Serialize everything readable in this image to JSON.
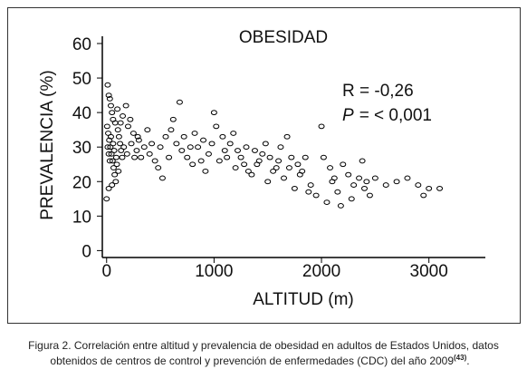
{
  "chart_data": {
    "type": "scatter",
    "title": "OBESIDAD",
    "x_label": "ALTITUD (m)",
    "y_label": "PREVALENCIA (%)",
    "annotations": [
      "R = -0,26",
      "P",
      "= < 0,001"
    ],
    "xlim": [
      -40,
      3500
    ],
    "ylim": [
      -2,
      60
    ],
    "xticks": [
      0,
      1000,
      2000,
      3000
    ],
    "yticks": [
      0,
      10,
      20,
      30,
      40,
      50,
      60
    ],
    "color": "#000000",
    "x": [
      0,
      10,
      20,
      30,
      40,
      50,
      60,
      5,
      15,
      25,
      35,
      45,
      55,
      65,
      75,
      85,
      95,
      105,
      115,
      125,
      135,
      145,
      20,
      50,
      80,
      100,
      150,
      200,
      250,
      300,
      350,
      400,
      450,
      500,
      550,
      600,
      650,
      700,
      750,
      800,
      850,
      900,
      950,
      1000,
      1050,
      1100,
      1150,
      1200,
      1250,
      1300,
      1350,
      1400,
      1450,
      1500,
      1550,
      1600,
      1650,
      1700,
      1750,
      1800,
      1850,
      1900,
      1950,
      2000,
      2050,
      2100,
      2150,
      2200,
      2250,
      2300,
      2350,
      2400,
      2450,
      2500,
      2600,
      2700,
      2800,
      2900,
      2950,
      3000,
      3100,
      180,
      220,
      280,
      320,
      380,
      420,
      480,
      520,
      580,
      620,
      680,
      720,
      780,
      820,
      880,
      920,
      980,
      1020,
      1080,
      1120,
      1180,
      1220,
      1280,
      1320,
      1380,
      1420,
      1480,
      1520,
      1580,
      1620,
      1680,
      1720,
      1780,
      1820,
      1880,
      2020,
      2080,
      2120,
      2180,
      2280,
      2380,
      2420,
      10,
      20,
      30,
      40,
      60,
      70,
      90,
      110,
      130,
      160,
      190,
      230,
      260,
      290
    ],
    "values": [
      15,
      48,
      45,
      44,
      42,
      40,
      38,
      36,
      34,
      32,
      30,
      28,
      26,
      24,
      22,
      20,
      25,
      35,
      33,
      31,
      29,
      27,
      18,
      19,
      37,
      41,
      39,
      36,
      34,
      32,
      30,
      28,
      26,
      30,
      33,
      35,
      31,
      29,
      27,
      25,
      30,
      32,
      28,
      40,
      26,
      29,
      31,
      24,
      27,
      30,
      22,
      25,
      28,
      20,
      23,
      26,
      21,
      24,
      18,
      22,
      27,
      19,
      16,
      36,
      14,
      20,
      17,
      25,
      22,
      19,
      21,
      18,
      16,
      21,
      19,
      20,
      21,
      19,
      16,
      18,
      18,
      42,
      38,
      29,
      27,
      35,
      31,
      24,
      21,
      27,
      38,
      43,
      33,
      30,
      34,
      26,
      23,
      31,
      36,
      33,
      27,
      34,
      29,
      25,
      23,
      29,
      26,
      31,
      27,
      24,
      30,
      33,
      27,
      25,
      23,
      17,
      27,
      24,
      21,
      13,
      15,
      26,
      20,
      30,
      28,
      26,
      33,
      31,
      29,
      27,
      23,
      37,
      30,
      28,
      31,
      27,
      33
    ]
  },
  "caption": {
    "lines": [
      "Figura 2. Correlación entre altitud y prevalencia de obesidad en adultos de Estados Unidos, datos",
      "obtenidos de centros de control y prevención de enfermedades (CDC) del año 2009"
    ],
    "ref": "(43)",
    "end": "."
  }
}
